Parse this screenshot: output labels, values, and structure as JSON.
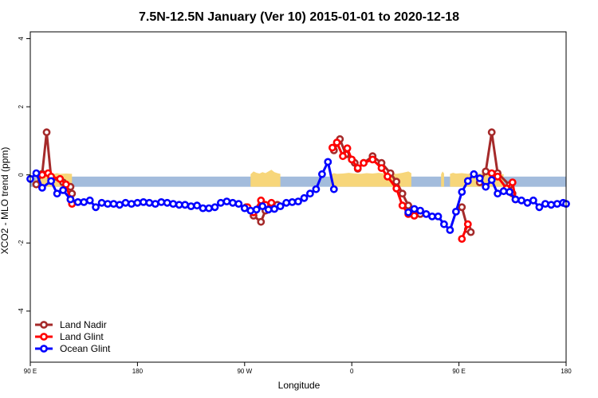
{
  "chart_data": {
    "type": "line",
    "title": "7.5N-12.5N January (Ver 10)   2015-01-01 to 2020-12-18",
    "xlabel": "Longitude",
    "ylabel": "XCO2 - MLO trend (ppm)",
    "xlim": [
      0,
      360
    ],
    "ylim": [
      -5.5,
      4.2
    ],
    "x_ticks": [
      {
        "value": 0,
        "label": "90 E"
      },
      {
        "value": 72,
        "label": "180"
      },
      {
        "value": 144,
        "label": "90 W"
      },
      {
        "value": 216,
        "label": "0"
      },
      {
        "value": 288,
        "label": "90 E"
      },
      {
        "value": 360,
        "label": "180"
      }
    ],
    "y_ticks": [
      {
        "value": 4,
        "label": "4"
      },
      {
        "value": 2,
        "label": "2"
      },
      {
        "value": 0,
        "label": "0"
      },
      {
        "value": -2,
        "label": "-2"
      },
      {
        "value": -4,
        "label": "-4"
      }
    ],
    "band": {
      "y_min": -0.35,
      "y_max": -0.05,
      "color": "#a3bcdc"
    },
    "land_fill": {
      "color": "#f7d67a",
      "segments": [
        [
          [
            4,
            0.02
          ],
          [
            6,
            0.06
          ],
          [
            8,
            0.03
          ],
          [
            10,
            0.05
          ],
          [
            12,
            0.02
          ],
          [
            14,
            0.04
          ],
          [
            16,
            0.03
          ],
          [
            18,
            0.05
          ],
          [
            20,
            0.03
          ],
          [
            24,
            0.04
          ],
          [
            28,
            0.03
          ]
        ],
        [
          [
            148,
            0.02
          ],
          [
            150,
            0.1
          ],
          [
            152,
            0.06
          ],
          [
            154,
            0.04
          ],
          [
            156,
            0.08
          ],
          [
            158,
            0.05
          ],
          [
            160,
            0.1
          ],
          [
            162,
            0.15
          ],
          [
            164,
            0.08
          ],
          [
            166,
            0.05
          ],
          [
            168,
            0.03
          ]
        ],
        [
          [
            202,
            0.02
          ],
          [
            204,
            0.05
          ],
          [
            206,
            0.03
          ],
          [
            210,
            0.04
          ],
          [
            214,
            0.06
          ],
          [
            218,
            0.04
          ],
          [
            222,
            0.03
          ],
          [
            226,
            0.05
          ],
          [
            230,
            0.04
          ],
          [
            234,
            0.06
          ],
          [
            238,
            0.04
          ],
          [
            242,
            0.05
          ],
          [
            246,
            0.03
          ],
          [
            250,
            0.06
          ],
          [
            254,
            0.1
          ],
          [
            256,
            0.05
          ]
        ],
        [
          [
            276,
            0.02
          ],
          [
            277,
            0.1
          ],
          [
            278,
            0.04
          ]
        ],
        [
          [
            282,
            0.03
          ],
          [
            284,
            0.06
          ],
          [
            286,
            0.04
          ],
          [
            290,
            0.05
          ],
          [
            294,
            0.03
          ],
          [
            298,
            0.06
          ],
          [
            302,
            0.04
          ],
          [
            306,
            0.05
          ],
          [
            310,
            0.03
          ],
          [
            314,
            0.04
          ],
          [
            318,
            0.02
          ]
        ]
      ]
    },
    "legend_position": "bottom-left",
    "series": [
      {
        "name": "Land Nadir",
        "color": "#a52a2a",
        "segments": [
          [
            [
              4,
              -0.28
            ],
            [
              8,
              0.03
            ],
            [
              11,
              1.25
            ],
            [
              14,
              -0.08
            ],
            [
              22,
              -0.22
            ],
            [
              27,
              -0.35
            ],
            [
              28,
              -0.55
            ]
          ],
          [
            [
              145,
              -0.95
            ],
            [
              150,
              -1.2
            ],
            [
              155,
              -1.38
            ],
            [
              158,
              -1.05
            ],
            [
              162,
              -0.95
            ],
            [
              166,
              -0.88
            ]
          ],
          [
            [
              204,
              0.72
            ],
            [
              208,
              1.05
            ],
            [
              212,
              0.6
            ],
            [
              218,
              0.35
            ],
            [
              220,
              0.18
            ],
            [
              224,
              0.35
            ],
            [
              230,
              0.55
            ],
            [
              236,
              0.35
            ],
            [
              242,
              0.05
            ],
            [
              246,
              -0.2
            ],
            [
              250,
              -0.55
            ],
            [
              254,
              -0.9
            ],
            [
              258,
              -1.1
            ],
            [
              262,
              -1.15
            ]
          ],
          [
            [
              290,
              -0.95
            ],
            [
              294,
              -1.6
            ],
            [
              296,
              -1.68
            ]
          ],
          [
            [
              302,
              -0.22
            ],
            [
              306,
              0.1
            ],
            [
              310,
              1.25
            ],
            [
              314,
              0.05
            ],
            [
              322,
              -0.3
            ],
            [
              324,
              -0.55
            ]
          ]
        ]
      },
      {
        "name": "Land Glint",
        "color": "#ff0000",
        "segments": [
          [
            [
              8,
              0.0
            ],
            [
              12,
              0.05
            ],
            [
              14,
              -0.05
            ],
            [
              20,
              -0.12
            ],
            [
              24,
              -0.28
            ],
            [
              27,
              -0.72
            ],
            [
              28,
              -0.85
            ]
          ],
          [
            [
              146,
              -0.95
            ],
            [
              150,
              -1.1
            ],
            [
              155,
              -0.75
            ],
            [
              158,
              -0.88
            ],
            [
              162,
              -0.82
            ]
          ],
          [
            [
              203,
              0.8
            ],
            [
              206,
              0.95
            ],
            [
              210,
              0.55
            ],
            [
              213,
              0.78
            ],
            [
              216,
              0.45
            ],
            [
              220,
              0.2
            ],
            [
              224,
              0.35
            ],
            [
              230,
              0.45
            ],
            [
              236,
              0.2
            ],
            [
              240,
              -0.05
            ],
            [
              246,
              -0.4
            ],
            [
              250,
              -0.9
            ],
            [
              254,
              -1.15
            ],
            [
              258,
              -1.2
            ]
          ],
          [
            [
              290,
              -1.88
            ],
            [
              294,
              -1.45
            ]
          ],
          [
            [
              310,
              0.05
            ],
            [
              314,
              -0.05
            ],
            [
              320,
              -0.4
            ],
            [
              324,
              -0.22
            ],
            [
              326,
              -0.72
            ]
          ]
        ]
      },
      {
        "name": "Ocean Glint",
        "color": "#0000ff",
        "segments": [
          [
            [
              0,
              -0.12
            ],
            [
              4,
              0.05
            ],
            [
              8,
              -0.38
            ],
            [
              14,
              -0.18
            ],
            [
              18,
              -0.55
            ],
            [
              22,
              -0.45
            ],
            [
              27,
              -0.72
            ],
            [
              32,
              -0.8
            ],
            [
              36,
              -0.8
            ],
            [
              40,
              -0.75
            ],
            [
              44,
              -0.95
            ],
            [
              48,
              -0.82
            ],
            [
              52,
              -0.85
            ],
            [
              56,
              -0.85
            ],
            [
              60,
              -0.88
            ],
            [
              64,
              -0.82
            ],
            [
              68,
              -0.85
            ],
            [
              72,
              -0.82
            ],
            [
              76,
              -0.8
            ],
            [
              80,
              -0.82
            ],
            [
              84,
              -0.85
            ],
            [
              88,
              -0.8
            ],
            [
              92,
              -0.82
            ],
            [
              96,
              -0.85
            ],
            [
              100,
              -0.88
            ],
            [
              104,
              -0.88
            ],
            [
              108,
              -0.92
            ],
            [
              112,
              -0.9
            ],
            [
              116,
              -0.98
            ],
            [
              120,
              -0.98
            ],
            [
              124,
              -0.95
            ],
            [
              128,
              -0.82
            ],
            [
              132,
              -0.78
            ],
            [
              136,
              -0.82
            ],
            [
              140,
              -0.85
            ],
            [
              144,
              -0.98
            ],
            [
              148,
              -1.05
            ],
            [
              152,
              -1.02
            ],
            [
              156,
              -0.92
            ],
            [
              160,
              -1.02
            ],
            [
              164,
              -1.0
            ],
            [
              168,
              -0.92
            ],
            [
              172,
              -0.82
            ],
            [
              176,
              -0.8
            ],
            [
              180,
              -0.78
            ],
            [
              184,
              -0.68
            ],
            [
              188,
              -0.55
            ],
            [
              192,
              -0.42
            ],
            [
              196,
              0.02
            ],
            [
              200,
              0.38
            ],
            [
              204,
              -0.42
            ]
          ],
          [
            [
              254,
              -1.1
            ],
            [
              258,
              -1.0
            ],
            [
              262,
              -1.05
            ],
            [
              266,
              -1.15
            ],
            [
              270,
              -1.22
            ],
            [
              274,
              -1.22
            ],
            [
              278,
              -1.45
            ],
            [
              282,
              -1.62
            ],
            [
              286,
              -1.08
            ],
            [
              290,
              -0.5
            ],
            [
              294,
              -0.18
            ],
            [
              298,
              0.02
            ],
            [
              302,
              -0.1
            ],
            [
              306,
              -0.35
            ],
            [
              310,
              -0.15
            ],
            [
              314,
              -0.55
            ],
            [
              318,
              -0.48
            ],
            [
              322,
              -0.5
            ],
            [
              326,
              -0.72
            ],
            [
              330,
              -0.75
            ],
            [
              334,
              -0.82
            ],
            [
              338,
              -0.75
            ],
            [
              342,
              -0.95
            ],
            [
              346,
              -0.85
            ],
            [
              350,
              -0.88
            ],
            [
              354,
              -0.85
            ],
            [
              358,
              -0.82
            ],
            [
              360,
              -0.85
            ]
          ]
        ]
      }
    ]
  }
}
